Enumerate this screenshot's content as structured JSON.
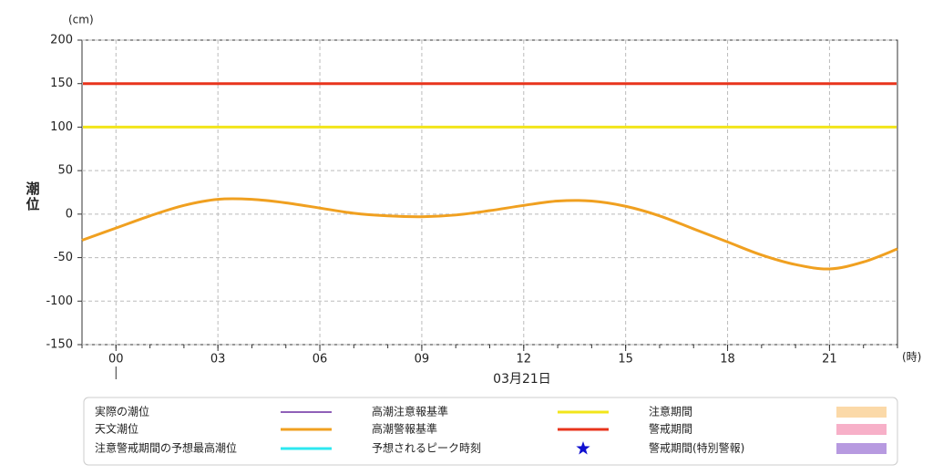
{
  "chart_data": {
    "type": "line",
    "y_unit": "(cm)",
    "x_unit": "(時)",
    "ylabel": "潮位",
    "date_label": "03月21日",
    "x": [
      -1,
      0,
      1,
      2,
      3,
      4,
      5,
      6,
      7,
      8,
      9,
      10,
      11,
      12,
      13,
      14,
      15,
      16,
      17,
      18,
      19,
      20,
      21,
      22,
      23
    ],
    "series": [
      {
        "name": "天文潮位",
        "color": "#f0a020",
        "values": [
          -30,
          -16,
          -2,
          10,
          17,
          17,
          13,
          7,
          1,
          -2,
          -3,
          -1,
          4,
          10,
          15,
          15,
          9,
          -2,
          -17,
          -32,
          -47,
          -58,
          -63,
          -55,
          -40
        ]
      }
    ],
    "thresholds": [
      {
        "name": "高潮注意報基準",
        "color": "#f2e51a",
        "value": 100
      },
      {
        "name": "高潮警報基準",
        "color": "#e8341c",
        "value": 150
      }
    ],
    "legend_extra": [
      {
        "name": "実際の潮位",
        "color": "#6a2ca0",
        "symbol": "thin-line"
      },
      {
        "name": "注意警戒期間の予想最高潮位",
        "color": "#2ee8f0",
        "symbol": "line"
      },
      {
        "name": "予想されるピーク時刻",
        "color": "#1010d0",
        "symbol": "star"
      },
      {
        "name": "注意期間",
        "color": "#fbd9a8",
        "symbol": "rect"
      },
      {
        "name": "警戒期間",
        "color": "#f7b0c8",
        "symbol": "rect"
      },
      {
        "name": "警戒期間(特別警報)",
        "color": "#b79ae0",
        "symbol": "rect"
      }
    ],
    "xlim": [
      -1,
      23
    ],
    "ylim": [
      -150,
      200
    ],
    "xticks": [
      {
        "value": 0,
        "label": "00"
      },
      {
        "value": 3,
        "label": "03"
      },
      {
        "value": 6,
        "label": "06"
      },
      {
        "value": 9,
        "label": "09"
      },
      12,
      15,
      18,
      21
    ],
    "yticks": [
      -150,
      -100,
      -50,
      0,
      50,
      100,
      150,
      200
    ],
    "grid": true
  }
}
